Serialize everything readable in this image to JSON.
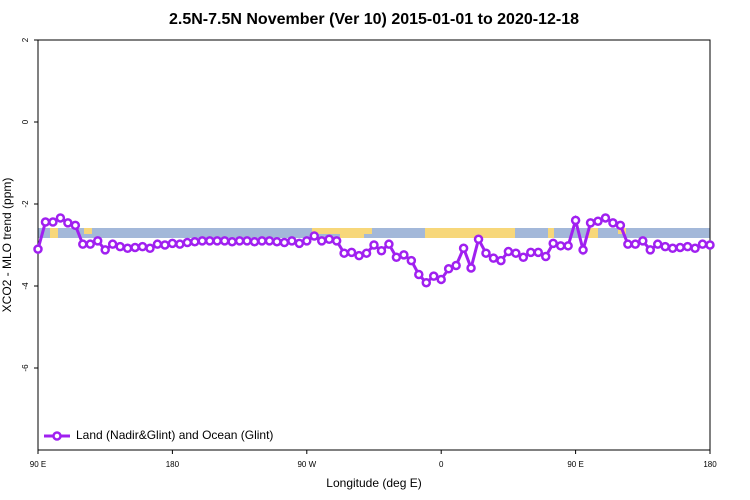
{
  "chart_data": {
    "type": "line",
    "title": "2.5N-7.5N November (Ver 10)   2015-01-01 to 2020-12-18",
    "x_label": "Longitude (deg E)",
    "y_label": "XCO2 - MLO trend (ppm)",
    "x": [
      90,
      95,
      100,
      105,
      110,
      115,
      120,
      125,
      130,
      135,
      140,
      145,
      150,
      155,
      160,
      165,
      170,
      175,
      180,
      185,
      190,
      195,
      200,
      205,
      210,
      215,
      220,
      225,
      230,
      235,
      240,
      245,
      250,
      255,
      260,
      265,
      270,
      275,
      280,
      285,
      290,
      295,
      300,
      305,
      310,
      315,
      320,
      325,
      330,
      335,
      340,
      345,
      350,
      355,
      360,
      365,
      370,
      375,
      380,
      385,
      390,
      395,
      400,
      405,
      410,
      415,
      420,
      425,
      430,
      435,
      440,
      445,
      450,
      455,
      460,
      465,
      470,
      475,
      480,
      485,
      490,
      495,
      500,
      505,
      510,
      515,
      520,
      525,
      530,
      535,
      540
    ],
    "series": [
      {
        "name": "Land (Nadir&Glint) and Ocean (Glint)",
        "color": "#a020f0",
        "values": [
          -3.1,
          -2.44,
          -2.44,
          -2.34,
          -2.46,
          -2.52,
          -2.98,
          -2.98,
          -2.9,
          -3.12,
          -2.98,
          -3.04,
          -3.08,
          -3.06,
          -3.04,
          -3.08,
          -2.98,
          -3.0,
          -2.96,
          -2.98,
          -2.94,
          -2.92,
          -2.9,
          -2.9,
          -2.9,
          -2.9,
          -2.92,
          -2.9,
          -2.9,
          -2.92,
          -2.9,
          -2.9,
          -2.92,
          -2.94,
          -2.9,
          -2.96,
          -2.9,
          -2.78,
          -2.9,
          -2.86,
          -2.9,
          -3.2,
          -3.18,
          -3.26,
          -3.2,
          -3.0,
          -3.14,
          -2.98,
          -3.3,
          -3.24,
          -3.38,
          -3.72,
          -3.92,
          -3.76,
          -3.84,
          -3.58,
          -3.5,
          -3.08,
          -3.56,
          -2.86,
          -3.2,
          -3.32,
          -3.38,
          -3.16,
          -3.2,
          -3.3,
          -3.18,
          -3.18,
          -3.28,
          -2.96,
          -3.02,
          -3.02,
          -2.4,
          -3.12,
          -2.46,
          -2.42,
          -2.34,
          -2.46,
          -2.52,
          -2.98,
          -2.98,
          -2.9,
          -3.12,
          -2.98,
          -3.04,
          -3.08,
          -3.06,
          -3.04,
          -3.08,
          -2.98,
          -3.0
        ]
      }
    ],
    "xlim": [
      90,
      540
    ],
    "xticks": [
      {
        "value": 90,
        "label": "90 E"
      },
      180,
      {
        "value": 270,
        "label": "90 W"
      },
      {
        "value": 360,
        "label": "0"
      },
      {
        "value": 450,
        "label": "90 E"
      },
      {
        "value": 540,
        "label": "180"
      }
    ],
    "ylim": [
      -8,
      2
    ],
    "yticks": [
      2,
      0,
      -2,
      -4,
      -6
    ],
    "legend": "bottom-left"
  }
}
